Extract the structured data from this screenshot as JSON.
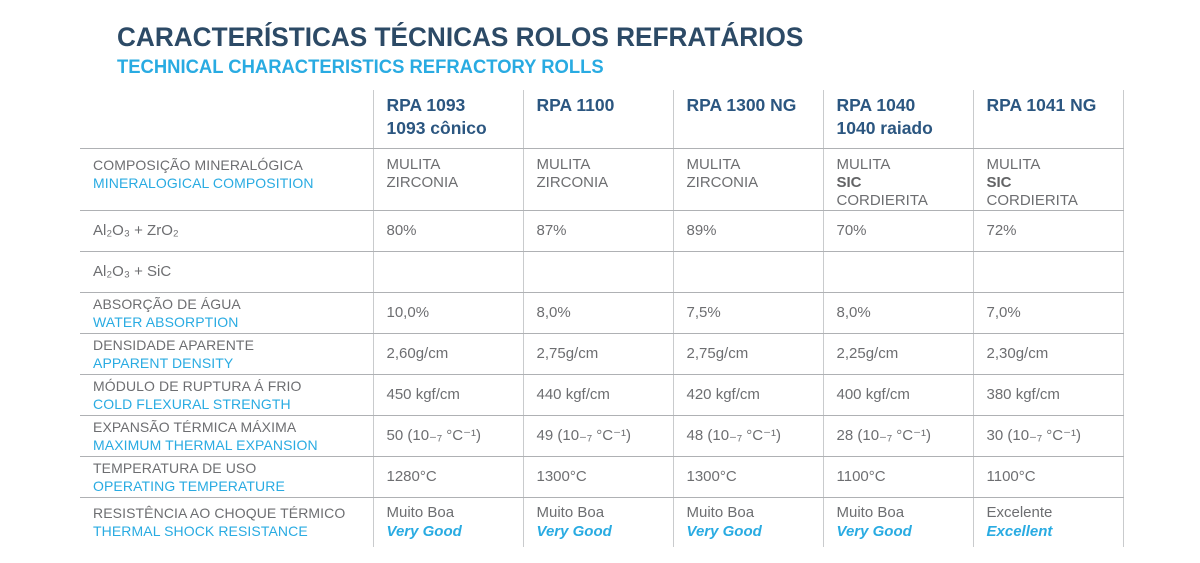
{
  "page": {
    "title": "CARACTERÍSTICAS TÉCNICAS ROLOS REFRATÁRIOS",
    "subtitle": "TECHNICAL CHARACTERISTICS REFRACTORY ROLLS"
  },
  "colors": {
    "title_navy": "#2C4A66",
    "header_navy": "#2B5680",
    "accent_cyan": "#29ABE2",
    "text_gray": "#6D6E71",
    "grid_horizontal": "#AFB1B4",
    "grid_vertical": "#C9CBCD"
  },
  "table": {
    "products": [
      {
        "name": "RPA 1093",
        "variant": "1093 cônico"
      },
      {
        "name": "RPA 1100",
        "variant": ""
      },
      {
        "name": "RPA 1300 NG",
        "variant": ""
      },
      {
        "name": "RPA 1040",
        "variant": "1040 raiado"
      },
      {
        "name": "RPA 1041 NG",
        "variant": ""
      }
    ],
    "bold_components": [
      "SIC"
    ],
    "rows": [
      {
        "type": "bilingual",
        "label_pt": "COMPOSIÇÃO MINERALÓGICA",
        "label_en": "MINERALOGICAL COMPOSITION",
        "values": [
          [
            "MULITA",
            "ZIRCONIA"
          ],
          [
            "MULITA",
            "ZIRCONIA"
          ],
          [
            "MULITA",
            "ZIRCONIA"
          ],
          [
            "MULITA",
            "SIC",
            "CORDIERITA"
          ],
          [
            "MULITA",
            "SIC",
            "CORDIERITA"
          ]
        ]
      },
      {
        "type": "formula",
        "label_pt": "Al₂O₃ + ZrO₂",
        "values": [
          "80%",
          "87%",
          "89%",
          "70%",
          "72%"
        ]
      },
      {
        "type": "formula",
        "label_pt": "Al₂O₃ + SiC",
        "values": [
          "",
          "",
          "",
          "",
          ""
        ]
      },
      {
        "type": "bilingual",
        "label_pt": "ABSORÇÃO DE ÁGUA",
        "label_en": "WATER ABSORPTION",
        "values": [
          "10,0%",
          "8,0%",
          "7,5%",
          "8,0%",
          "7,0%"
        ]
      },
      {
        "type": "bilingual",
        "label_pt": "DENSIDADE APARENTE",
        "label_en": "APPARENT DENSITY",
        "values": [
          "2,60g/cm",
          "2,75g/cm",
          "2,75g/cm",
          "2,25g/cm",
          "2,30g/cm"
        ]
      },
      {
        "type": "bilingual",
        "label_pt": "MÓDULO DE RUPTURA Á FRIO",
        "label_en": "COLD FLEXURAL STRENGTH",
        "values": [
          "450 kgf/cm",
          "440 kgf/cm",
          "420 kgf/cm",
          "400 kgf/cm",
          "380 kgf/cm"
        ]
      },
      {
        "type": "bilingual",
        "label_pt": "EXPANSÃO TÉRMICA MÁXIMA",
        "label_en": "MAXIMUM THERMAL EXPANSION",
        "values": [
          "50 (10₋₇ °C⁻¹)",
          "49 (10₋₇ °C⁻¹)",
          "48 (10₋₇ °C⁻¹)",
          "28 (10₋₇ °C⁻¹)",
          "30 (10₋₇ °C⁻¹)"
        ]
      },
      {
        "type": "bilingual",
        "label_pt": "TEMPERATURA DE USO",
        "label_en": "OPERATING TEMPERATURE",
        "values": [
          "1280°C",
          "1300°C",
          "1300°C",
          "1100°C",
          "1100°C"
        ]
      },
      {
        "type": "bilingual",
        "label_pt": "RESISTÊNCIA AO CHOQUE TÉRMICO",
        "label_en": "THERMAL SHOCK RESISTANCE",
        "values": [
          {
            "pt": "Muito Boa",
            "en": "Very Good"
          },
          {
            "pt": "Muito Boa",
            "en": "Very Good"
          },
          {
            "pt": "Muito Boa",
            "en": "Very Good"
          },
          {
            "pt": "Muito Boa",
            "en": "Very Good"
          },
          {
            "pt": "Excelente",
            "en": "Excellent"
          }
        ]
      }
    ]
  }
}
